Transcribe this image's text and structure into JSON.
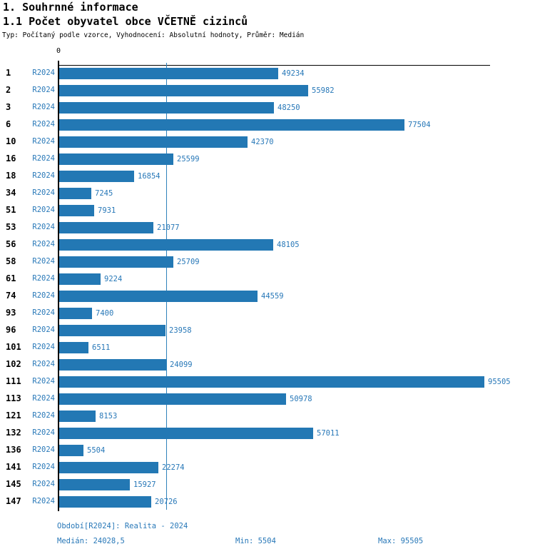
{
  "header": {
    "title1": "1. Souhrnné informace",
    "title2": "1.1 Počet obyvatel obce VČETNĚ cizinců",
    "subtitle": "Typ: Počítaný podle vzorce, Vyhodnocení: Absolutní hodnoty, Průměr: Medián"
  },
  "chart_data": {
    "type": "bar",
    "orientation": "horizontal",
    "title": "1.1 Počet obyvatel obce VČETNĚ cizinců",
    "series_label": "R2024",
    "categories": [
      "1",
      "2",
      "3",
      "6",
      "10",
      "16",
      "18",
      "34",
      "51",
      "53",
      "56",
      "58",
      "61",
      "74",
      "93",
      "96",
      "101",
      "102",
      "111",
      "113",
      "121",
      "132",
      "136",
      "141",
      "145",
      "147"
    ],
    "values": [
      49234,
      55982,
      48250,
      77504,
      42370,
      25599,
      16854,
      7245,
      7931,
      21077,
      48105,
      25709,
      9224,
      44559,
      7400,
      23958,
      6511,
      24099,
      95505,
      50978,
      8153,
      57011,
      5504,
      22274,
      15927,
      20726
    ],
    "xlabel": "",
    "ylabel": "",
    "xlim": [
      0,
      96800
    ],
    "origin_tick_label": "0",
    "median_value": 24028.5,
    "grid": "single-median-line",
    "legend": "none",
    "bar_color": "#2378b4",
    "label_color": "#2878b8",
    "median_line_color": "#2e82bb"
  },
  "footer": {
    "period": "Období[R2024]: Realita - 2024",
    "median": "Medián: 24028,5",
    "min": "Min: 5504",
    "max": "Max: 95505"
  }
}
